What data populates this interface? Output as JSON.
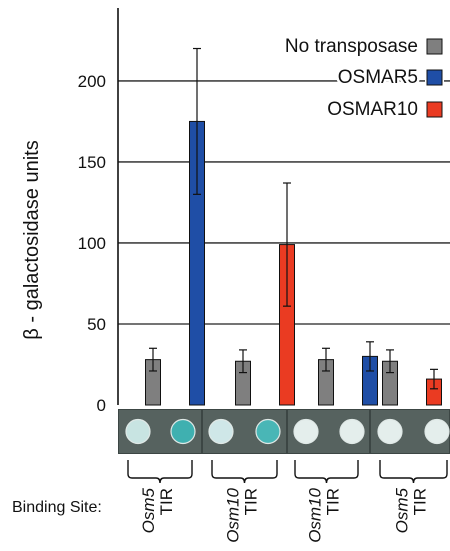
{
  "chart_data": {
    "type": "bar",
    "ylabel": "β - galactosidase units",
    "ylim": [
      0,
      245
    ],
    "yticks": [
      0,
      50,
      100,
      150,
      200
    ],
    "grid": "horizontal",
    "legend_position": "top-right",
    "series_meta": [
      {
        "name": "No transposase",
        "color": "#7f7f7f"
      },
      {
        "name": "OSMAR5",
        "color": "#1f4ea6"
      },
      {
        "name": "OSMAR10",
        "color": "#ea3b22"
      }
    ],
    "bars": [
      {
        "group": 0,
        "series": 0,
        "value": 28,
        "err": 7
      },
      {
        "group": 0,
        "series": 1,
        "value": 175,
        "err": 45
      },
      {
        "group": 1,
        "series": 0,
        "value": 27,
        "err": 7
      },
      {
        "group": 1,
        "series": 2,
        "value": 99,
        "err": 38
      },
      {
        "group": 2,
        "series": 0,
        "value": 28,
        "err": 7
      },
      {
        "group": 2,
        "series": 1,
        "value": 30,
        "err": 9
      },
      {
        "group": 3,
        "series": 0,
        "value": 27,
        "err": 7
      },
      {
        "group": 3,
        "series": 2,
        "value": 16,
        "err": 6
      }
    ],
    "groups": [
      {
        "name": "Osm5",
        "sub": "TIR"
      },
      {
        "name": "Osm10",
        "sub": "TIR"
      },
      {
        "name": "Osm10",
        "sub": "TIR"
      },
      {
        "name": "Osm5",
        "sub": "TIR"
      }
    ],
    "x_row_label": "Binding Site:",
    "colony_colors": [
      "#c8e4e2",
      "#3fb0b0",
      "#cfe7e8",
      "#49b6b6",
      "#e4eeec",
      "#e4eeec",
      "#e4eeec",
      "#e4eeec"
    ]
  }
}
